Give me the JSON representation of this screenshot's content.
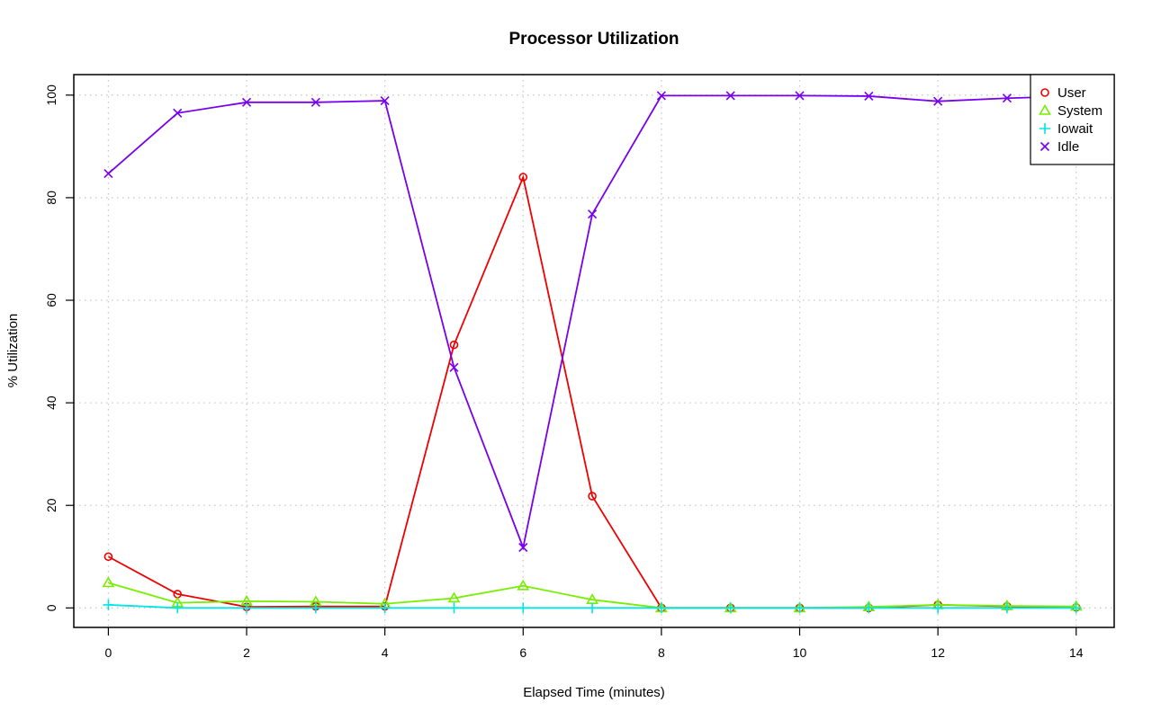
{
  "chart_data": {
    "type": "line",
    "title": "Processor Utilization",
    "xlabel": "Elapsed Time (minutes)",
    "ylabel": "% Utilization",
    "xlim": [
      -0.5,
      14.55
    ],
    "ylim": [
      -3.8,
      104.0
    ],
    "xticks": [
      0,
      2,
      4,
      6,
      8,
      10,
      12,
      14
    ],
    "yticks": [
      0,
      20,
      40,
      60,
      80,
      100
    ],
    "grid": true,
    "legend_position": "top-right",
    "x": [
      0,
      1,
      2,
      3,
      4,
      5,
      6,
      7,
      8,
      9,
      10,
      11,
      12,
      13,
      14
    ],
    "series": [
      {
        "name": "User",
        "color": "#ee0000",
        "marker": "circle",
        "values": [
          10.0,
          2.7,
          0.2,
          0.3,
          0.3,
          51.3,
          84.0,
          21.8,
          0.0,
          0.0,
          0.0,
          0.0,
          0.6,
          0.3,
          0.1
        ]
      },
      {
        "name": "System",
        "color": "#77ee00",
        "marker": "triangle",
        "values": [
          4.9,
          1.0,
          1.3,
          1.2,
          0.8,
          1.9,
          4.3,
          1.6,
          0.0,
          0.0,
          0.0,
          0.2,
          0.6,
          0.4,
          0.3
        ]
      },
      {
        "name": "Iowait",
        "color": "#00e5e5",
        "marker": "plus",
        "values": [
          0.6,
          0.0,
          0.0,
          0.0,
          0.0,
          0.0,
          0.0,
          0.0,
          0.0,
          0.0,
          0.0,
          0.0,
          0.0,
          0.0,
          0.0
        ]
      },
      {
        "name": "Idle",
        "color": "#7700ee",
        "marker": "cross",
        "values": [
          84.7,
          96.5,
          98.6,
          98.6,
          98.9,
          46.9,
          11.8,
          76.8,
          99.9,
          99.9,
          99.9,
          99.8,
          98.8,
          99.4,
          99.8
        ]
      }
    ]
  }
}
